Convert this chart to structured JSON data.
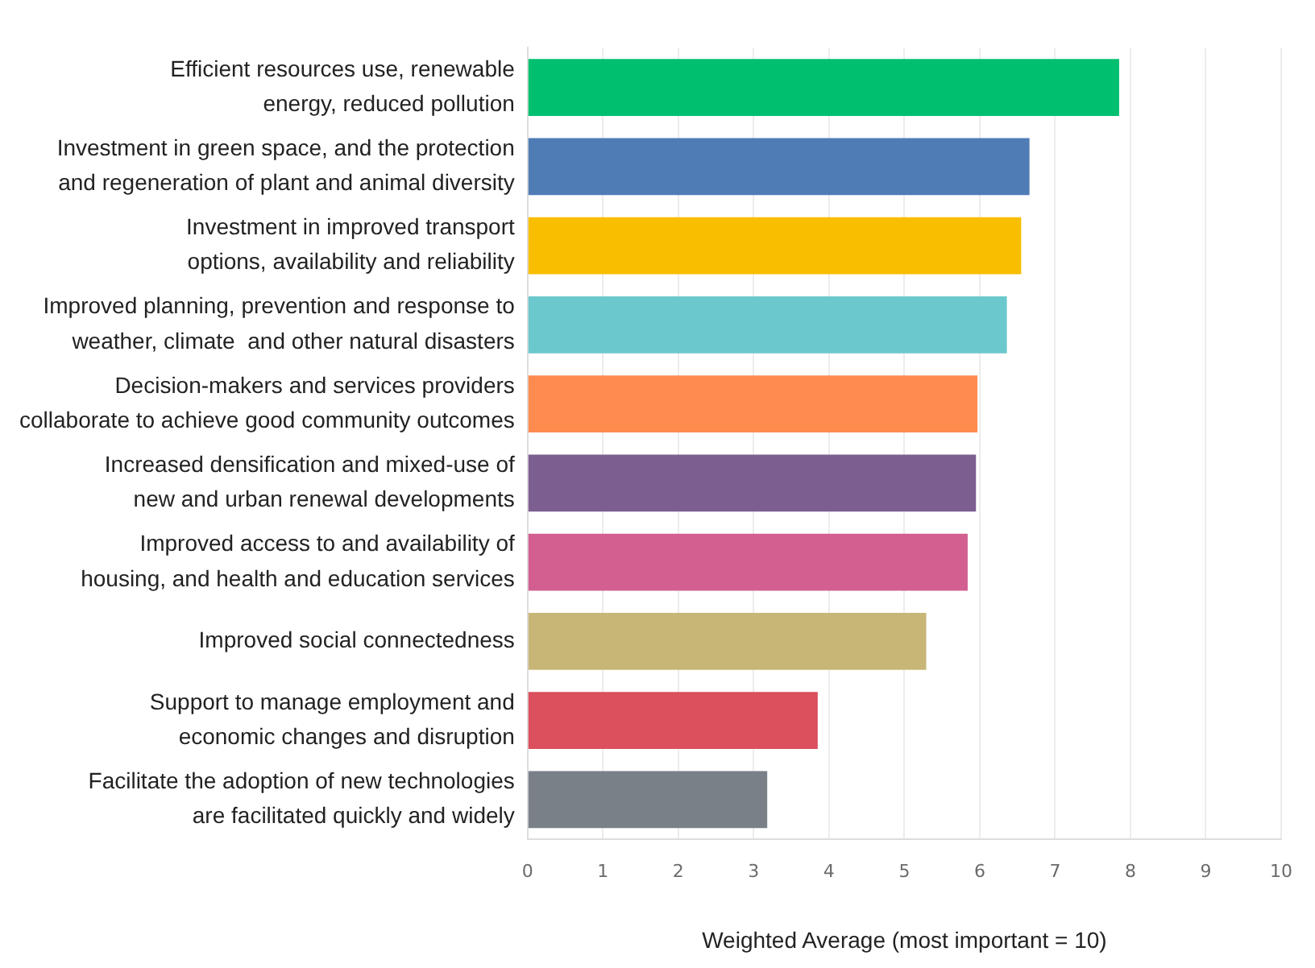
{
  "chart_data": {
    "type": "bar",
    "orientation": "horizontal",
    "xlabel": "Weighted Average (most important = 10)",
    "categories": [
      "Efficient resources use, renewable\nenergy, reduced pollution",
      "Investment in green space, and the protection\nand regeneration of plant and animal diversity",
      "Investment in improved transport\noptions, availability and reliability",
      "Improved planning, prevention and response to\nweather, climate  and other natural disasters",
      "Decision-makers and services providers\ncollaborate to achieve good community outcomes",
      "Increased densification and mixed-use of\nnew and urban renewal developments",
      "Improved access to and availability of\nhousing, and health and education services",
      "Improved social connectedness",
      "Support to manage employment and\neconomic changes and disruption",
      "Facilitate the adoption of new technologies\nare facilitated quickly and widely"
    ],
    "values": [
      7.85,
      6.66,
      6.55,
      6.36,
      5.97,
      5.95,
      5.84,
      5.29,
      3.85,
      3.18
    ],
    "colors": [
      "#00bf6f",
      "#507cb6",
      "#f9be00",
      "#6bc8cd",
      "#ff8b4f",
      "#7d5e90",
      "#d25f90",
      "#c8b677",
      "#dc4f5d",
      "#7a8088"
    ],
    "xlim": [
      0,
      10
    ],
    "xticks": [
      0,
      1,
      2,
      3,
      4,
      5,
      6,
      7,
      8,
      9,
      10
    ],
    "grid": "x",
    "legend": false
  }
}
